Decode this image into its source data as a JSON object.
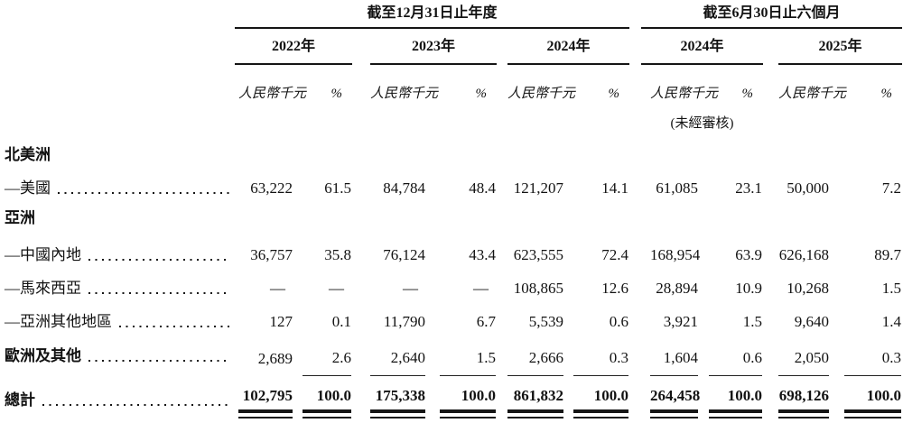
{
  "document": {
    "section_groups": [
      {
        "title": "截至12月31日止年度",
        "years": [
          "2022年",
          "2023年",
          "2024年"
        ]
      },
      {
        "title": "截至6月30日止六個月",
        "years": [
          "2024年",
          "2025年"
        ]
      }
    ],
    "column_headers": {
      "amount": "人民幣千元",
      "percent": "%"
    },
    "unaudited_note": "(未經審核)",
    "rows": [
      {
        "label": "北美洲",
        "style": "section",
        "leader": false,
        "values": []
      },
      {
        "label": "—美國",
        "style": "item",
        "leader": true,
        "values": [
          "63,222",
          "61.5",
          "84,784",
          "48.4",
          "121,207",
          "14.1",
          "61,085",
          "23.1",
          "50,000",
          "7.2"
        ]
      },
      {
        "label": "亞洲",
        "style": "section",
        "leader": false,
        "values": []
      },
      {
        "label": "—中國內地",
        "style": "item",
        "leader": true,
        "values": [
          "36,757",
          "35.8",
          "76,124",
          "43.4",
          "623,555",
          "72.4",
          "168,954",
          "63.9",
          "626,168",
          "89.7"
        ]
      },
      {
        "label": "—馬來西亞",
        "style": "item",
        "leader": true,
        "values": [
          "—",
          "—",
          "—",
          "—",
          "108,865",
          "12.6",
          "28,894",
          "10.9",
          "10,268",
          "1.5"
        ]
      },
      {
        "label": "—亞洲其他地區",
        "style": "item",
        "leader": true,
        "values": [
          "127",
          "0.1",
          "11,790",
          "6.7",
          "5,539",
          "0.6",
          "3,921",
          "1.5",
          "9,640",
          "1.4"
        ]
      },
      {
        "label": "歐洲及其他",
        "style": "section-item",
        "leader": true,
        "rule_below": true,
        "values": [
          "2,689",
          "2.6",
          "2,640",
          "1.5",
          "2,666",
          "0.3",
          "1,604",
          "0.6",
          "2,050",
          "0.3"
        ]
      }
    ],
    "total_row": {
      "label": "總計",
      "values": [
        "102,795",
        "100.0",
        "175,338",
        "100.0",
        "861,832",
        "100.0",
        "264,458",
        "100.0",
        "698,126",
        "100.0"
      ]
    }
  }
}
